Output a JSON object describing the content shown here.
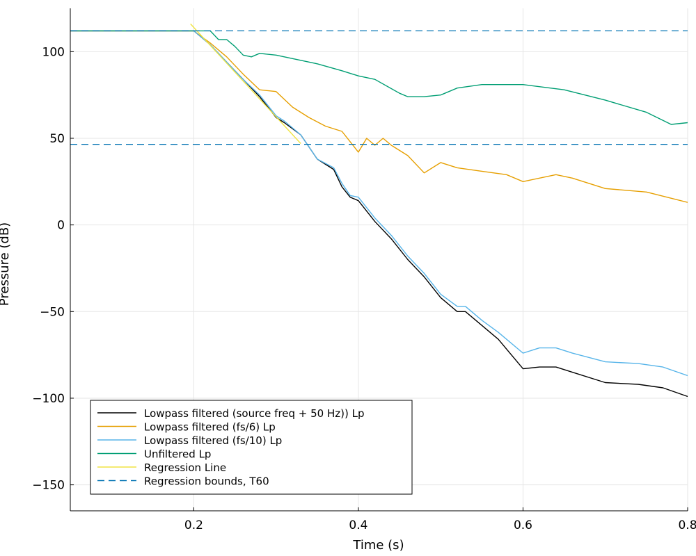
{
  "chart_data": {
    "type": "line",
    "title": "",
    "xlabel": "Time (s)",
    "ylabel": "Pressure (dB)",
    "xlim": [
      0.05,
      0.8
    ],
    "ylim": [
      -165,
      125
    ],
    "xticks": [
      0.2,
      0.4,
      0.6,
      0.8
    ],
    "xtick_labels": [
      "0.2",
      "0.4",
      "0.6",
      "0.8"
    ],
    "yticks": [
      100,
      50,
      0,
      -50,
      -100,
      -150
    ],
    "ytick_labels": [
      "100",
      "50",
      "0",
      "−50",
      "−100",
      "−150"
    ],
    "grid": true,
    "legend_position": "bottom-left",
    "series": [
      {
        "name": "Lowpass filtered (source freq + 50 Hz)) Lp",
        "color": "#000000",
        "style": "solid",
        "x": [
          0.05,
          0.2,
          0.22,
          0.24,
          0.26,
          0.28,
          0.3,
          0.31,
          0.33,
          0.35,
          0.37,
          0.38,
          0.39,
          0.4,
          0.42,
          0.44,
          0.46,
          0.48,
          0.5,
          0.52,
          0.53,
          0.55,
          0.57,
          0.6,
          0.62,
          0.64,
          0.66,
          0.7,
          0.74,
          0.77,
          0.8
        ],
        "y": [
          112,
          112,
          104,
          94,
          84,
          74,
          62,
          59,
          52,
          38,
          32,
          22,
          16,
          14,
          2,
          -8,
          -20,
          -30,
          -42,
          -50,
          -50,
          -58,
          -66,
          -83,
          -82,
          -82,
          -85,
          -91,
          -92,
          -94,
          -99
        ]
      },
      {
        "name": "Lowpass filtered (fs/6) Lp",
        "color": "#e69f00",
        "style": "solid",
        "x": [
          0.05,
          0.2,
          0.22,
          0.24,
          0.26,
          0.28,
          0.3,
          0.32,
          0.34,
          0.36,
          0.38,
          0.4,
          0.41,
          0.42,
          0.43,
          0.44,
          0.46,
          0.48,
          0.5,
          0.52,
          0.55,
          0.58,
          0.6,
          0.64,
          0.66,
          0.7,
          0.75,
          0.8
        ],
        "y": [
          112,
          112,
          105,
          97,
          87,
          78,
          77,
          68,
          62,
          57,
          54,
          42,
          50,
          46,
          50,
          46,
          40,
          30,
          36,
          33,
          31,
          29,
          25,
          29,
          27,
          21,
          19,
          13
        ]
      },
      {
        "name": "Lowpass filtered (fs/10) Lp",
        "color": "#56b4e9",
        "style": "solid",
        "x": [
          0.05,
          0.2,
          0.22,
          0.24,
          0.26,
          0.28,
          0.3,
          0.31,
          0.33,
          0.35,
          0.37,
          0.38,
          0.39,
          0.4,
          0.42,
          0.44,
          0.46,
          0.48,
          0.5,
          0.52,
          0.53,
          0.55,
          0.57,
          0.6,
          0.62,
          0.64,
          0.66,
          0.7,
          0.74,
          0.77,
          0.8
        ],
        "y": [
          112,
          112,
          104,
          94,
          84,
          75,
          63,
          60,
          52,
          38,
          33,
          24,
          17,
          16,
          4,
          -6,
          -18,
          -28,
          -40,
          -47,
          -47,
          -55,
          -62,
          -74,
          -71,
          -71,
          -74,
          -79,
          -80,
          -82,
          -87
        ]
      },
      {
        "name": "Unfiltered Lp",
        "color": "#009e73",
        "style": "solid",
        "x": [
          0.05,
          0.2,
          0.22,
          0.23,
          0.24,
          0.25,
          0.26,
          0.27,
          0.28,
          0.3,
          0.32,
          0.35,
          0.38,
          0.4,
          0.42,
          0.45,
          0.46,
          0.48,
          0.5,
          0.52,
          0.55,
          0.58,
          0.6,
          0.65,
          0.7,
          0.75,
          0.78,
          0.8
        ],
        "y": [
          112,
          112,
          112,
          107,
          107,
          103,
          98,
          97,
          99,
          98,
          96,
          93,
          89,
          86,
          84,
          76,
          74,
          74,
          75,
          79,
          81,
          81,
          81,
          78,
          72,
          65,
          58,
          59
        ]
      },
      {
        "name": "Regression Line",
        "color": "#f0e442",
        "style": "solid",
        "x": [
          0.196,
          0.33
        ],
        "y": [
          116,
          47
        ]
      },
      {
        "name": "Regression bounds, T60",
        "color": "#0072b2",
        "style": "dashed",
        "hlines": [
          112,
          46.5
        ]
      }
    ]
  }
}
